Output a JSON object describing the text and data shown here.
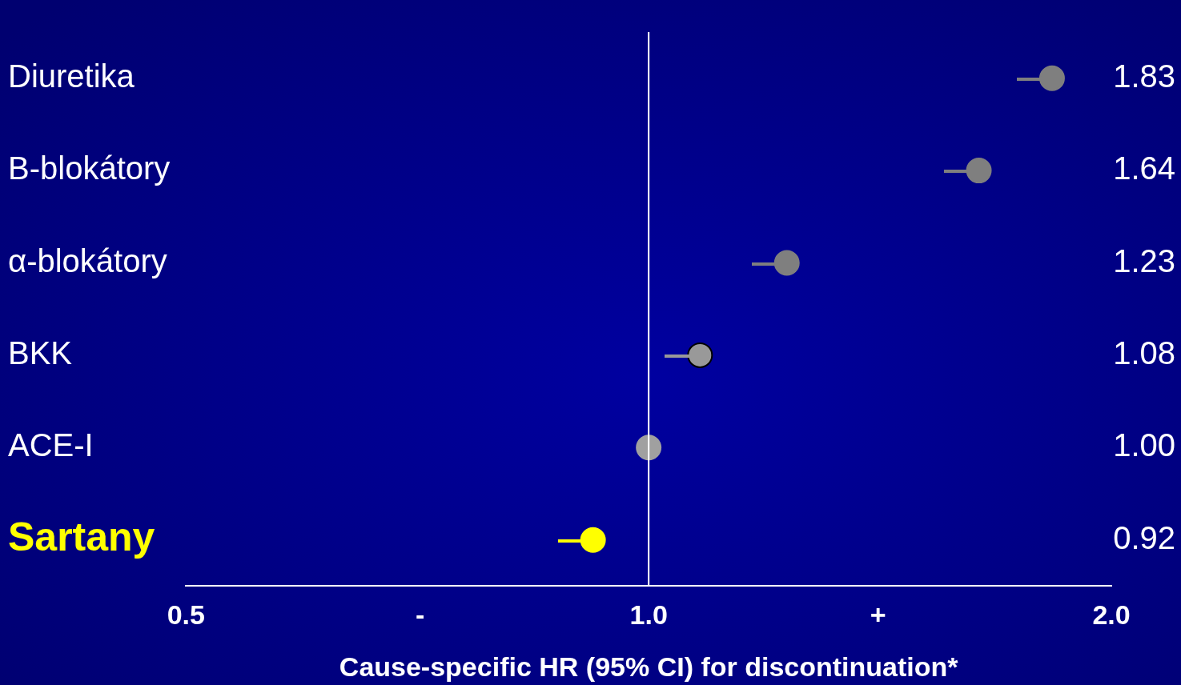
{
  "chart_data": {
    "type": "scatter",
    "categories": [
      "Diuretika",
      "B-blokátory",
      "α-blokátory",
      "BKK",
      "ACE-I",
      "Sartany"
    ],
    "values": [
      1.83,
      1.64,
      1.23,
      1.08,
      1.0,
      0.92
    ],
    "colors": [
      "#7f7f7f",
      "#7f7f7f",
      "#7f7f7f",
      "#999999",
      "#a0a0a0",
      "#ffff00"
    ],
    "value_labels": [
      "1.83",
      "1.64",
      "1.23",
      "1.08",
      "1.00",
      "0.92"
    ],
    "orientation": "horizontal",
    "log": "x",
    "xlim": [
      0.5,
      2.0
    ],
    "xticks": [
      0.5,
      {
        "value": 0.71,
        "label": "-"
      },
      {
        "value": 1.0,
        "label": "1.0"
      },
      {
        "value": 1.41,
        "label": "+"
      },
      {
        "value": 2.0,
        "label": "2.0"
      }
    ],
    "xlabel": "Cause-specific HR (95% CI) for discontinuation*",
    "ref_lines": [
      {
        "axis": "x",
        "value": 1.0,
        "color": "#ffffff"
      }
    ],
    "marker": "circle",
    "grid": false,
    "legend": false
  }
}
